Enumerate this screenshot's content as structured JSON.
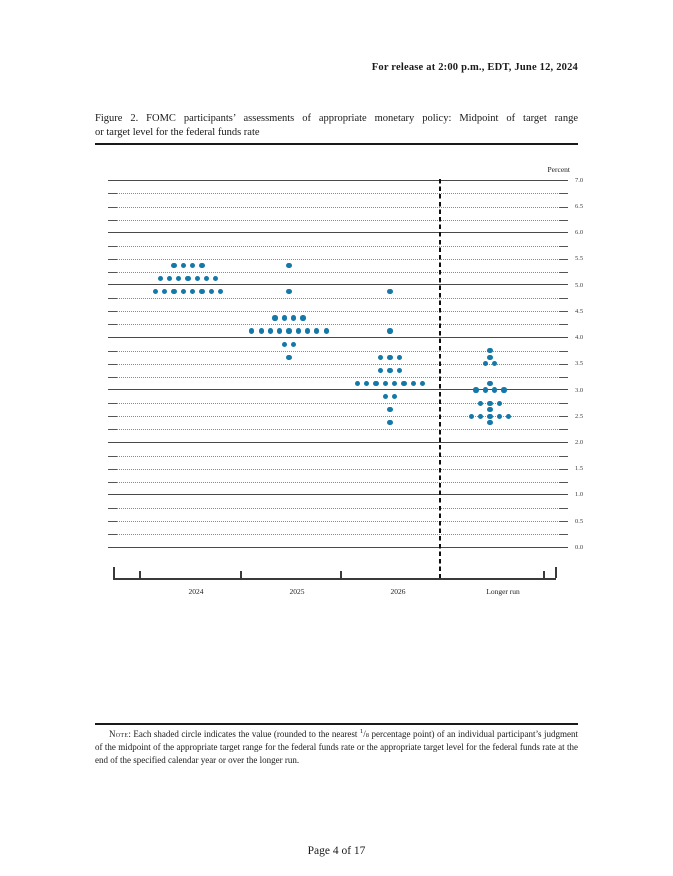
{
  "header": {
    "release_line": "For release at 2:00 p.m., EDT, June 12, 2024"
  },
  "figure": {
    "title_line1": "Figure 2.  FOMC participants’ assessments of appropriate monetary policy:  Midpoint of target range",
    "title_line2": "or target level for the federal funds rate"
  },
  "chart_data": {
    "type": "scatter",
    "title": "FOMC participants’ assessments of appropriate monetary policy: Midpoint of target range or target level for the federal funds rate",
    "ylabel": "Percent",
    "xlabel": "",
    "ylim": [
      0.0,
      7.0
    ],
    "grid_step": 0.25,
    "grid_solid_step": 1.0,
    "legend": "none",
    "yticks": [
      "7.0",
      "6.5",
      "6.0",
      "5.5",
      "5.0",
      "4.5",
      "4.0",
      "3.5",
      "3.0",
      "2.5",
      "2.0",
      "1.5",
      "1.0",
      "0.5",
      "0.0"
    ],
    "categories": [
      "2024",
      "2025",
      "2026",
      "Longer run"
    ],
    "separator_after_category": "2026",
    "dot_color": "#1478a8",
    "series": [
      {
        "category": "2024",
        "dots": [
          {
            "value": 5.375,
            "count": 4
          },
          {
            "value": 5.125,
            "count": 7
          },
          {
            "value": 4.875,
            "count": 8
          }
        ]
      },
      {
        "category": "2025",
        "dots": [
          {
            "value": 5.375,
            "count": 1
          },
          {
            "value": 4.875,
            "count": 1
          },
          {
            "value": 4.375,
            "count": 4
          },
          {
            "value": 4.125,
            "count": 9
          },
          {
            "value": 3.875,
            "count": 2
          },
          {
            "value": 3.625,
            "count": 1
          }
        ]
      },
      {
        "category": "2026",
        "dots": [
          {
            "value": 4.875,
            "count": 1
          },
          {
            "value": 4.125,
            "count": 1
          },
          {
            "value": 3.625,
            "count": 3
          },
          {
            "value": 3.375,
            "count": 3
          },
          {
            "value": 3.125,
            "count": 8
          },
          {
            "value": 2.875,
            "count": 2
          },
          {
            "value": 2.625,
            "count": 1
          },
          {
            "value": 2.375,
            "count": 1
          }
        ]
      },
      {
        "category": "Longer run",
        "dots": [
          {
            "value": 3.75,
            "count": 1
          },
          {
            "value": 3.625,
            "count": 1
          },
          {
            "value": 3.5,
            "count": 2
          },
          {
            "value": 3.125,
            "count": 1
          },
          {
            "value": 3.0,
            "count": 4
          },
          {
            "value": 2.75,
            "count": 3
          },
          {
            "value": 2.625,
            "count": 1
          },
          {
            "value": 2.5,
            "count": 5
          },
          {
            "value": 2.375,
            "count": 1
          }
        ]
      }
    ]
  },
  "note": {
    "label": "Note",
    "before_fraction": ":  Each shaded circle indicates the value (rounded to the nearest ",
    "fraction_numerator": "1",
    "fraction_slash": "/",
    "fraction_denominator": "8",
    "after_fraction": " percentage point) of an individual participant’s judgment of the midpoint of the appropriate target range for the federal funds rate or the appropriate target level for the federal funds rate at the end of the specified calendar year or over the longer run."
  },
  "footer": {
    "page_label": "Page 4 of 17"
  }
}
